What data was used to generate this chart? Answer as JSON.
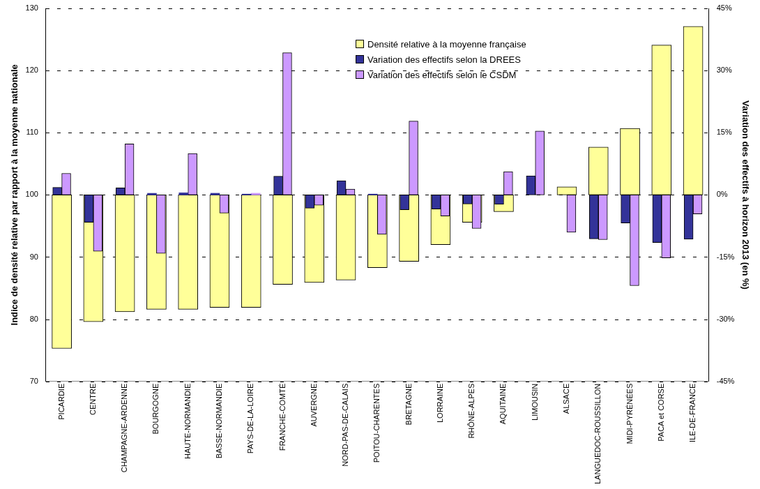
{
  "chart_data": {
    "type": "bar",
    "categories": [
      "PICARDIE",
      "CENTRE",
      "CHAMPAGNE-ARDENNE",
      "BOURGOGNE",
      "HAUTE-NORMANDIE",
      "BASSE-NORMANDIE",
      "PAYS-DE-LA-LOIRE",
      "FRANCHE-COMTÉ",
      "AUVERGNE",
      "NORD-PAS-DE-CALAIS",
      "POITOU-CHARENTES",
      "BRETAGNE",
      "LORRAINE",
      "RHÔNE-ALPES",
      "AQUITAINE",
      "LIMOUSIN",
      "ALSACE",
      "LANGUEDOC-ROUSSILLON",
      "MIDI-PYRÉNÉES",
      "PACA et CORSE",
      "ILE-DE-FRANCE"
    ],
    "ylabel": "Indice de densité relative par rapport à la moyenne nationale",
    "y2label": "Variation des effectifs à horizon 2013 (en %)",
    "series": [
      {
        "name": "Densité relative à la moyenne française",
        "color": "#ffff99",
        "base": [
          100,
          100,
          100,
          100,
          100,
          100,
          100,
          100,
          100,
          100,
          100,
          100,
          100,
          100,
          100,
          null,
          100,
          100,
          100,
          100,
          100
        ],
        "values": [
          -24.7,
          -20.4,
          -18.8,
          -18.4,
          -18.4,
          -18.1,
          -18.1,
          -14.4,
          -14.1,
          -13.7,
          -11.7,
          -10.7,
          -8,
          -4.4,
          -2.7,
          null,
          1.3,
          7.7,
          10.7,
          24.1,
          27.1
        ]
      },
      {
        "name": "Variation des effectifs selon la DREES",
        "color": "#333399",
        "axis": "y2",
        "values": [
          1.8,
          -6.6,
          1.7,
          0.4,
          0.5,
          0.4,
          0.2,
          4.5,
          -3.2,
          3.4,
          0.2,
          -3.6,
          -3.4,
          -2.2,
          -2.3,
          4.6,
          null,
          -10.6,
          -6.8,
          -11.5,
          -10.7
        ]
      },
      {
        "name": "Variation des effectifs selon le CSDM",
        "color": "#cc99ff",
        "axis": "y2",
        "values": [
          5.2,
          -13.6,
          12.3,
          -14.1,
          10,
          -4.4,
          0.4,
          34.3,
          -2.5,
          1.4,
          -9.5,
          17.8,
          -5.1,
          -8.1,
          5.6,
          15.4,
          -9,
          -10.8,
          -21.9,
          -15.2,
          -4.6
        ]
      }
    ],
    "ylim": [
      70,
      130
    ],
    "yticks": [
      70,
      80,
      90,
      100,
      110,
      120,
      130
    ],
    "y2lim": [
      -45,
      45
    ],
    "y2ticks": [
      {
        "value": -45,
        "label": "-45%"
      },
      {
        "value": -30,
        "label": "-30%"
      },
      {
        "value": -15,
        "label": "-15%"
      },
      {
        "value": 0,
        "label": "0%"
      },
      {
        "value": 15,
        "label": "15%"
      },
      {
        "value": 30,
        "label": "30%"
      },
      {
        "value": 45,
        "label": "45%"
      }
    ],
    "grid": "y",
    "legend": "top right"
  }
}
